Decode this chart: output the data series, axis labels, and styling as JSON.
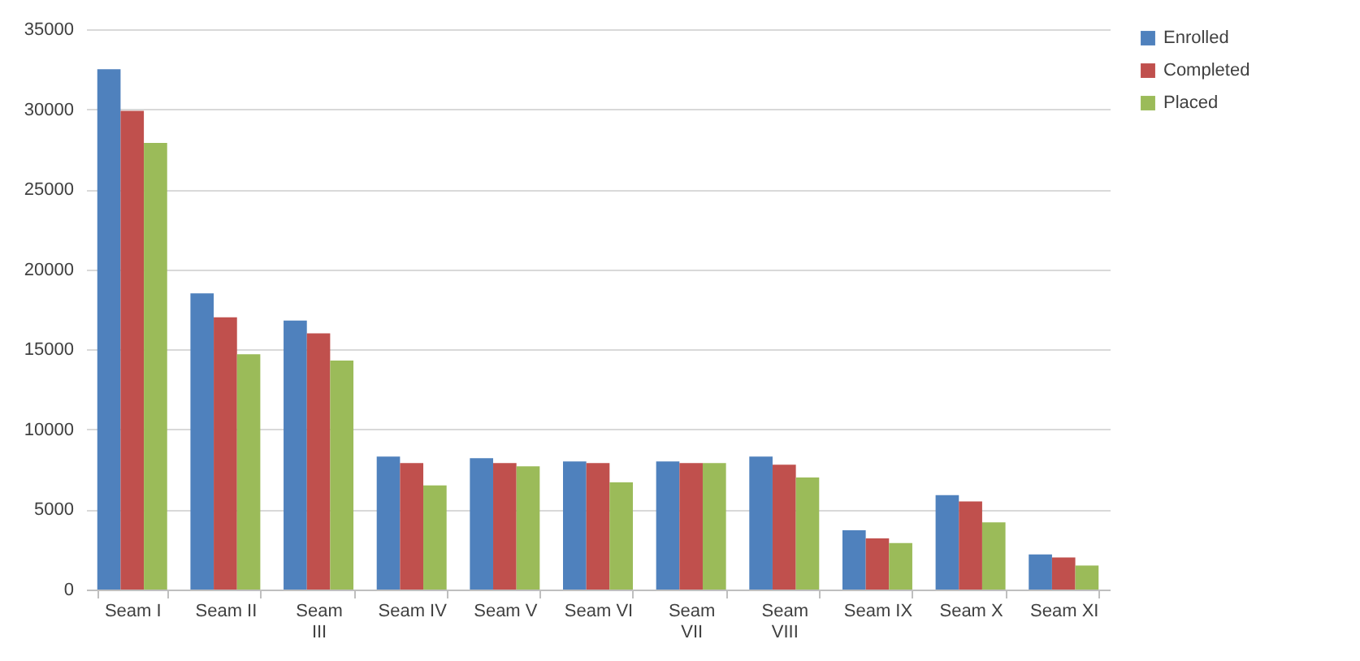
{
  "chart_data": {
    "type": "bar",
    "categories": [
      "Seam I",
      "Seam II",
      "Seam III",
      "Seam IV",
      "Seam V",
      "Seam VI",
      "Seam VII",
      "Seam VIII",
      "Seam IX",
      "Seam X",
      "Seam XI"
    ],
    "series": [
      {
        "name": "Enrolled",
        "color": "#4f81bd",
        "values": [
          32500,
          18500,
          16800,
          8300,
          8200,
          8000,
          8000,
          8300,
          3700,
          5900,
          2200
        ]
      },
      {
        "name": "Completed",
        "color": "#c0504d",
        "values": [
          29900,
          17000,
          16000,
          7900,
          7900,
          7900,
          7900,
          7800,
          3200,
          5500,
          2000
        ]
      },
      {
        "name": "Placed",
        "color": "#9bbb59",
        "values": [
          27900,
          14700,
          14300,
          6500,
          7700,
          6700,
          7900,
          7000,
          2900,
          4200,
          1500
        ]
      }
    ],
    "ylim": [
      0,
      35000
    ],
    "yticks": [
      0,
      5000,
      10000,
      15000,
      20000,
      25000,
      30000,
      35000
    ],
    "grid": "y",
    "legend": "right"
  }
}
